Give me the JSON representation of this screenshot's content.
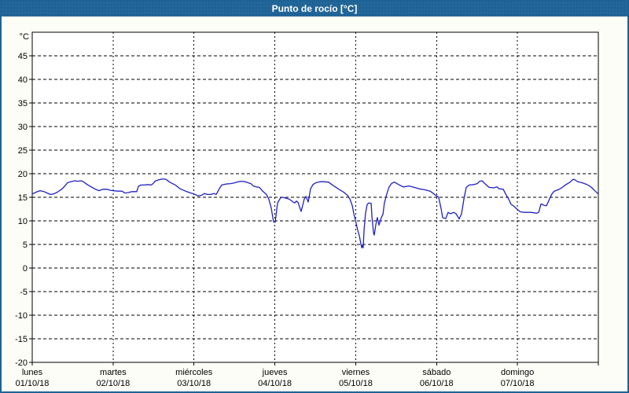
{
  "window_title": "Punto de rocío [°C]",
  "chart_data": {
    "type": "line",
    "title": "Punto de rocío [°C]",
    "y_unit": "°C",
    "ylim": [
      -20,
      50
    ],
    "y_tick_step": 5,
    "y_ticks": [
      45,
      40,
      35,
      30,
      25,
      20,
      15,
      10,
      5,
      0,
      -5,
      -10,
      -15,
      -20
    ],
    "xlim_hours": [
      0,
      168
    ],
    "grid": true,
    "plot_bg": "#FFFFFF",
    "frame_color": "#000000",
    "days": [
      {
        "name": "lunes",
        "date": "01/10/18"
      },
      {
        "name": "martes",
        "date": "02/10/18"
      },
      {
        "name": "miércoles",
        "date": "03/10/18"
      },
      {
        "name": "jueves",
        "date": "04/10/18"
      },
      {
        "name": "viernes",
        "date": "05/10/18"
      },
      {
        "name": "sábado",
        "date": "06/10/18"
      },
      {
        "name": "domingo",
        "date": "07/10/18"
      }
    ],
    "series": [
      {
        "name": "punto-de-rocio",
        "color": "#2121C2",
        "points": [
          [
            0,
            15.7
          ],
          [
            1.2,
            16.1
          ],
          [
            2.3,
            16.4
          ],
          [
            3.5,
            16.2
          ],
          [
            4.4,
            15.9
          ],
          [
            5.4,
            15.6
          ],
          [
            6.3,
            15.7
          ],
          [
            7.5,
            16.1
          ],
          [
            8.9,
            16.8
          ],
          [
            9.8,
            17.5
          ],
          [
            10.5,
            18.1
          ],
          [
            11.4,
            18.3
          ],
          [
            12.6,
            18.5
          ],
          [
            13.5,
            18.4
          ],
          [
            14.5,
            18.5
          ],
          [
            15.2,
            18.3
          ],
          [
            15.9,
            17.9
          ],
          [
            17,
            17.4
          ],
          [
            18,
            17
          ],
          [
            19.1,
            16.6
          ],
          [
            19.8,
            16.4
          ],
          [
            21,
            16.7
          ],
          [
            22.2,
            16.7
          ],
          [
            23.1,
            16.5
          ],
          [
            24,
            16.4
          ],
          [
            25.4,
            16.3
          ],
          [
            26.6,
            16.3
          ],
          [
            27.5,
            15.9
          ],
          [
            28.5,
            16
          ],
          [
            29.6,
            16.2
          ],
          [
            31,
            16.2
          ],
          [
            31.5,
            17.3
          ],
          [
            32.2,
            17.6
          ],
          [
            33.4,
            17.6
          ],
          [
            34.3,
            17.7
          ],
          [
            35.2,
            17.6
          ],
          [
            35.7,
            17.8
          ],
          [
            36.6,
            18.5
          ],
          [
            38,
            18.8
          ],
          [
            39,
            18.9
          ],
          [
            39.7,
            18.8
          ],
          [
            40.8,
            18.2
          ],
          [
            42.5,
            17.6
          ],
          [
            43.9,
            16.8
          ],
          [
            45.5,
            16.3
          ],
          [
            47.1,
            15.9
          ],
          [
            48,
            15.7
          ],
          [
            49.2,
            15.3
          ],
          [
            50.2,
            15.4
          ],
          [
            51.1,
            15.8
          ],
          [
            52,
            15.6
          ],
          [
            53,
            15.6
          ],
          [
            53.9,
            15.8
          ],
          [
            54.6,
            15.6
          ],
          [
            55.5,
            16.8
          ],
          [
            56.2,
            17.6
          ],
          [
            57.4,
            17.8
          ],
          [
            58.8,
            17.9
          ],
          [
            59.7,
            18
          ],
          [
            61.1,
            18.3
          ],
          [
            62.1,
            18.4
          ],
          [
            63.2,
            18.3
          ],
          [
            64.4,
            18
          ],
          [
            64.9,
            17.9
          ],
          [
            65.6,
            17.4
          ],
          [
            66.5,
            17.2
          ],
          [
            67.4,
            17.1
          ],
          [
            68.4,
            16.3
          ],
          [
            69.5,
            15.6
          ],
          [
            70.2,
            14.6
          ],
          [
            70.9,
            12.8
          ],
          [
            71.6,
            9.8
          ],
          [
            72.1,
            9.7
          ],
          [
            72.8,
            13.8
          ],
          [
            73.7,
            14.9
          ],
          [
            74.4,
            15
          ],
          [
            75.4,
            14.8
          ],
          [
            76.3,
            14.6
          ],
          [
            77.2,
            14.1
          ],
          [
            77.9,
            13.8
          ],
          [
            78.4,
            14.2
          ],
          [
            78.9,
            13.9
          ],
          [
            79.6,
            12.4
          ],
          [
            79.8,
            12
          ],
          [
            80.7,
            14.6
          ],
          [
            81.2,
            15.2
          ],
          [
            81.9,
            14
          ],
          [
            82.6,
            16.8
          ],
          [
            83.3,
            17.7
          ],
          [
            84.2,
            18.1
          ],
          [
            85.4,
            18.3
          ],
          [
            86.6,
            18.3
          ],
          [
            88,
            18.2
          ],
          [
            88.9,
            17.7
          ],
          [
            90.8,
            16.8
          ],
          [
            92.4,
            16.1
          ],
          [
            93.6,
            15.4
          ],
          [
            94.3,
            14.6
          ],
          [
            95,
            13.2
          ],
          [
            95.4,
            11.6
          ],
          [
            96,
            9.9
          ],
          [
            96.6,
            8
          ],
          [
            97.1,
            6.8
          ],
          [
            97.5,
            5.2
          ],
          [
            97.8,
            4.3
          ],
          [
            98,
            4.9
          ],
          [
            98.2,
            4.3
          ],
          [
            98.5,
            8.2
          ],
          [
            98.9,
            11.6
          ],
          [
            99.4,
            13.5
          ],
          [
            99.9,
            13.8
          ],
          [
            100.6,
            13.7
          ],
          [
            100.8,
            11
          ],
          [
            101.3,
            7.4
          ],
          [
            101.5,
            7
          ],
          [
            102,
            9.3
          ],
          [
            102.4,
            10.7
          ],
          [
            102.9,
            9.1
          ],
          [
            103.6,
            10.7
          ],
          [
            104.1,
            11.4
          ],
          [
            104.5,
            13.8
          ],
          [
            105.2,
            15.7
          ],
          [
            105.9,
            17.2
          ],
          [
            106.6,
            17.9
          ],
          [
            107.3,
            18.2
          ],
          [
            107.8,
            18.1
          ],
          [
            108.7,
            17.7
          ],
          [
            110.1,
            17.2
          ],
          [
            111.8,
            17.4
          ],
          [
            113.4,
            17.1
          ],
          [
            114.8,
            16.8
          ],
          [
            116.4,
            16.6
          ],
          [
            118.1,
            16.3
          ],
          [
            119.2,
            15.7
          ],
          [
            120,
            15.3
          ],
          [
            120.6,
            15
          ],
          [
            121.3,
            12.7
          ],
          [
            121.8,
            10.7
          ],
          [
            122,
            10.6
          ],
          [
            122.7,
            10.5
          ],
          [
            123.4,
            11.8
          ],
          [
            124.1,
            11.5
          ],
          [
            125.1,
            11.8
          ],
          [
            125.8,
            11.5
          ],
          [
            126.7,
            10.4
          ],
          [
            127.4,
            11.5
          ],
          [
            128.1,
            14.6
          ],
          [
            128.8,
            17.1
          ],
          [
            129.7,
            17.6
          ],
          [
            131.1,
            17.7
          ],
          [
            132.1,
            17.9
          ],
          [
            132.8,
            18.4
          ],
          [
            133.5,
            18.5
          ],
          [
            134.6,
            17.7
          ],
          [
            135.6,
            17.1
          ],
          [
            137,
            17
          ],
          [
            137.9,
            17.2
          ],
          [
            138.6,
            16.8
          ],
          [
            139.8,
            16.7
          ],
          [
            140.5,
            15.7
          ],
          [
            141.4,
            14.6
          ],
          [
            142.1,
            13.5
          ],
          [
            142.8,
            13.2
          ],
          [
            144,
            12.4
          ],
          [
            144.9,
            11.9
          ],
          [
            146.3,
            11.8
          ],
          [
            147.9,
            11.8
          ],
          [
            149.1,
            11.7
          ],
          [
            149.6,
            11.6
          ],
          [
            150.3,
            11.8
          ],
          [
            151,
            13.6
          ],
          [
            151.9,
            13.3
          ],
          [
            152.6,
            13.2
          ],
          [
            153.3,
            14.3
          ],
          [
            154.2,
            15.7
          ],
          [
            154.9,
            16.3
          ],
          [
            156.1,
            16.6
          ],
          [
            157.3,
            17.1
          ],
          [
            158.4,
            17.7
          ],
          [
            159.6,
            18.2
          ],
          [
            160.3,
            18.7
          ],
          [
            160.8,
            18.8
          ],
          [
            161.5,
            18.5
          ],
          [
            161.9,
            18.3
          ],
          [
            163.1,
            18.1
          ],
          [
            164.3,
            17.8
          ],
          [
            165.4,
            17.4
          ],
          [
            166.1,
            17
          ],
          [
            167.1,
            16.3
          ],
          [
            168,
            15.7
          ]
        ]
      }
    ]
  }
}
